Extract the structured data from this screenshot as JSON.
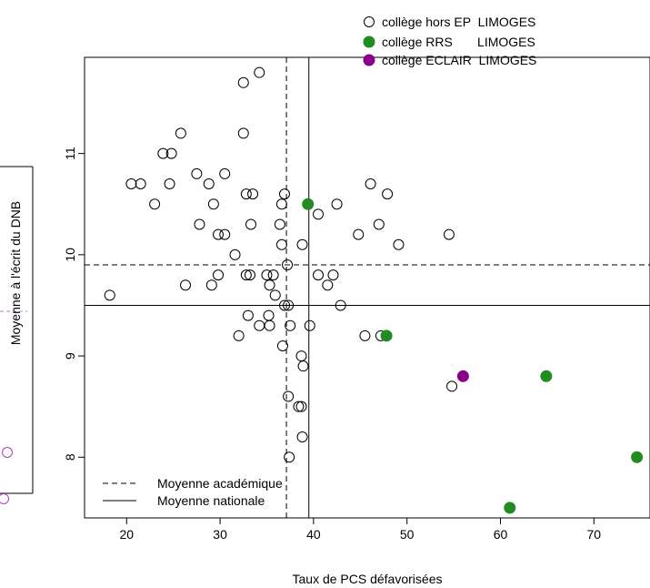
{
  "chart_data": {
    "type": "scatter",
    "xlabel": "Taux de PCS défavorisées",
    "ylabel": "Moyenne à l'écrit du DNB",
    "xlim": [
      15.5,
      76
    ],
    "ylim": [
      7.4,
      11.95
    ],
    "x_ticks": [
      20,
      30,
      40,
      50,
      60,
      70
    ],
    "y_ticks": [
      8,
      9,
      10,
      11
    ],
    "reference_lines": [
      {
        "name": "Moyenne académique",
        "orientation": "vertical",
        "value": 37.1,
        "style": "dashed"
      },
      {
        "name": "Moyenne académique",
        "orientation": "horizontal",
        "value": 9.9,
        "style": "dashed"
      },
      {
        "name": "Moyenne nationale",
        "orientation": "vertical",
        "value": 39.5,
        "style": "solid"
      },
      {
        "name": "Moyenne nationale",
        "orientation": "horizontal",
        "value": 9.5,
        "style": "solid"
      }
    ],
    "line_legend": [
      {
        "label": "Moyenne académique",
        "style": "dashed"
      },
      {
        "label": "Moyenne nationale",
        "style": "solid"
      }
    ],
    "series": [
      {
        "name": "collège hors EP  LIMOGES",
        "marker": "open-circle",
        "color": "#000000",
        "points": [
          [
            34.2,
            11.8
          ],
          [
            32.5,
            11.7
          ],
          [
            25.8,
            11.2
          ],
          [
            32.5,
            11.2
          ],
          [
            23.9,
            11.0
          ],
          [
            24.8,
            11.0
          ],
          [
            20.5,
            10.7
          ],
          [
            21.5,
            10.7
          ],
          [
            24.6,
            10.7
          ],
          [
            27.5,
            10.8
          ],
          [
            30.5,
            10.8
          ],
          [
            28.8,
            10.7
          ],
          [
            46.1,
            10.7
          ],
          [
            32.8,
            10.6
          ],
          [
            33.5,
            10.6
          ],
          [
            36.9,
            10.6
          ],
          [
            47.9,
            10.6
          ],
          [
            23.0,
            10.5
          ],
          [
            29.3,
            10.5
          ],
          [
            36.6,
            10.5
          ],
          [
            42.5,
            10.5
          ],
          [
            40.5,
            10.4
          ],
          [
            27.8,
            10.3
          ],
          [
            33.3,
            10.3
          ],
          [
            36.4,
            10.3
          ],
          [
            47.0,
            10.3
          ],
          [
            29.8,
            10.2
          ],
          [
            30.5,
            10.2
          ],
          [
            44.8,
            10.2
          ],
          [
            54.5,
            10.2
          ],
          [
            36.6,
            10.1
          ],
          [
            38.8,
            10.1
          ],
          [
            49.1,
            10.1
          ],
          [
            31.6,
            10.0
          ],
          [
            37.2,
            9.9
          ],
          [
            26.3,
            9.7
          ],
          [
            29.8,
            9.8
          ],
          [
            32.8,
            9.8
          ],
          [
            33.2,
            9.8
          ],
          [
            35.0,
            9.8
          ],
          [
            35.7,
            9.8
          ],
          [
            40.5,
            9.8
          ],
          [
            42.1,
            9.8
          ],
          [
            35.3,
            9.7
          ],
          [
            29.1,
            9.7
          ],
          [
            41.5,
            9.7
          ],
          [
            18.2,
            9.6
          ],
          [
            35.9,
            9.6
          ],
          [
            36.9,
            9.5
          ],
          [
            37.3,
            9.5
          ],
          [
            42.9,
            9.5
          ],
          [
            33.0,
            9.4
          ],
          [
            35.2,
            9.4
          ],
          [
            34.2,
            9.3
          ],
          [
            35.3,
            9.3
          ],
          [
            37.5,
            9.3
          ],
          [
            39.6,
            9.3
          ],
          [
            32.0,
            9.2
          ],
          [
            45.5,
            9.2
          ],
          [
            47.2,
            9.2
          ],
          [
            36.7,
            9.1
          ],
          [
            38.7,
            9.0
          ],
          [
            38.9,
            8.9
          ],
          [
            54.8,
            8.7
          ],
          [
            37.3,
            8.6
          ],
          [
            38.4,
            8.5
          ],
          [
            38.7,
            8.5
          ],
          [
            38.8,
            8.2
          ],
          [
            37.4,
            8.0
          ]
        ]
      },
      {
        "name": "collège RRS       LIMOGES",
        "marker": "filled-circle",
        "color": "#228b22",
        "points": [
          [
            39.4,
            10.5
          ],
          [
            47.8,
            9.2
          ],
          [
            64.9,
            8.8
          ],
          [
            74.6,
            8.0
          ],
          [
            61.0,
            7.5
          ]
        ]
      },
      {
        "name": "collège ECLAIR  LIMOGES",
        "marker": "filled-circle",
        "color": "#8b008b",
        "points": [
          [
            56.0,
            8.8
          ]
        ]
      }
    ],
    "legend_position": "top-right",
    "grid": false
  },
  "left_edge_markers": {
    "color": "#b040c0",
    "count": 2
  }
}
